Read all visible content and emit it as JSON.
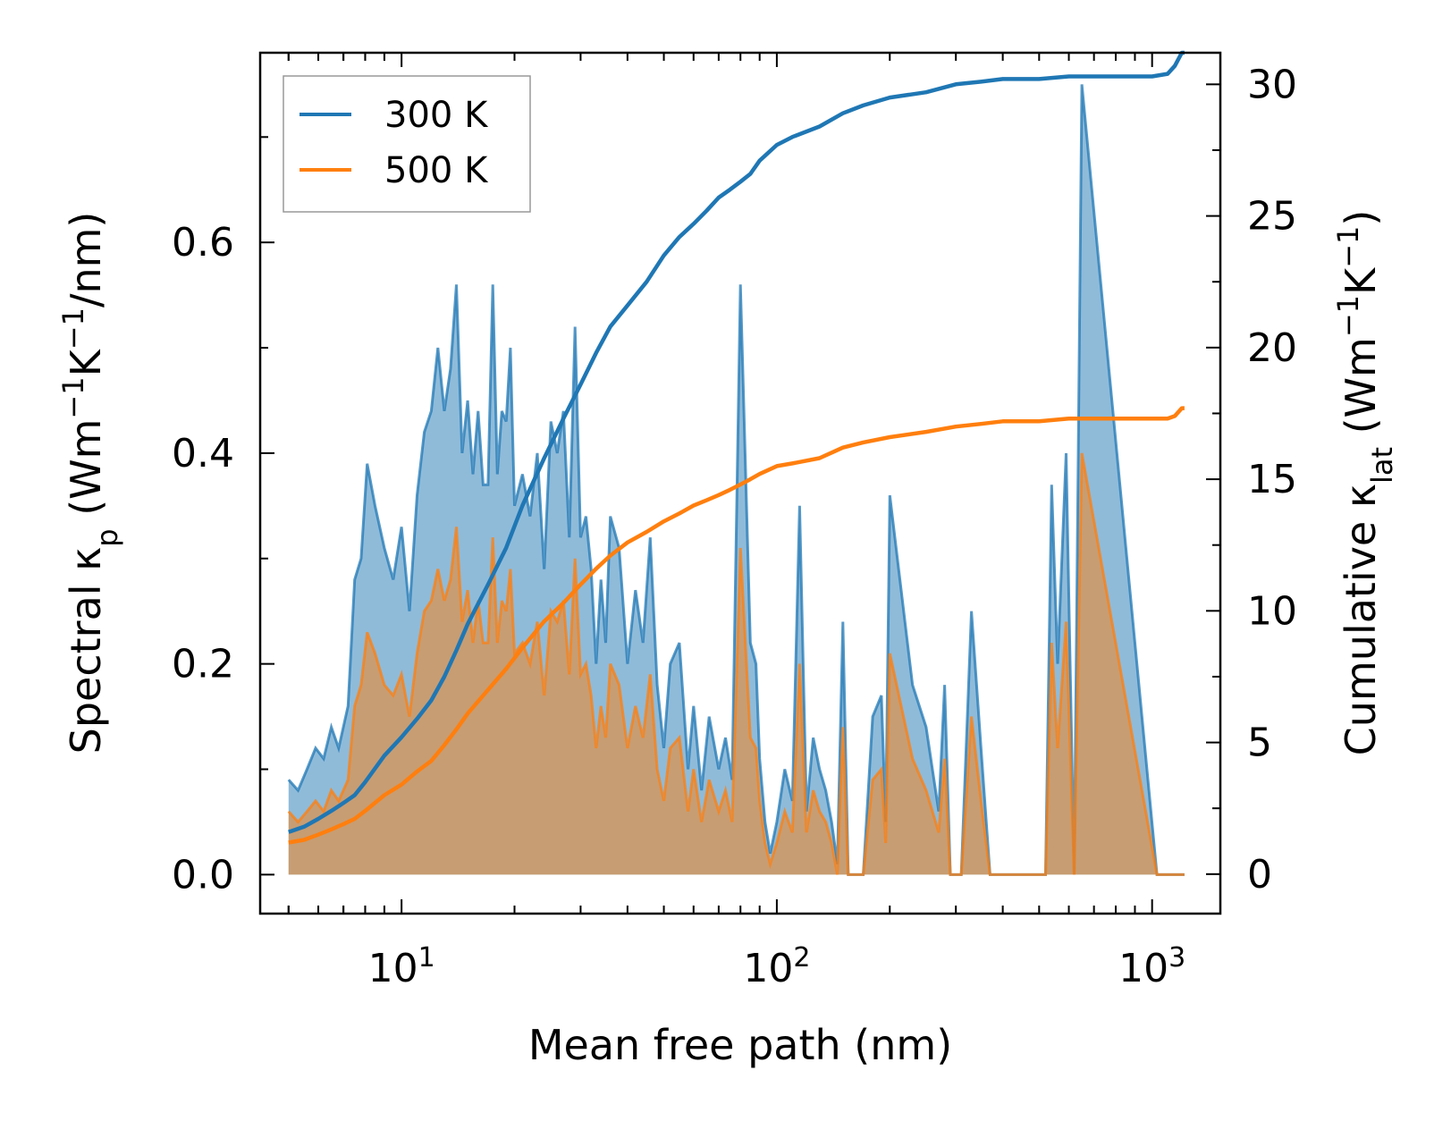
{
  "chart_data": {
    "type": "area+line",
    "xscale": "log",
    "xlim": [
      4.2,
      1520
    ],
    "ylim_left": [
      -0.037,
      0.78
    ],
    "ylim_right": [
      -1.5,
      31.2
    ],
    "xlabel": "Mean free path (nm)",
    "ylabel_left": "Spectral κp (Wm−1K−1/nm)",
    "ylabel_right": "Cumulative κlat (Wm−1K−1)",
    "x_ticks": [
      {
        "value": 10,
        "base": "10",
        "exp": "1"
      },
      {
        "value": 100,
        "base": "10",
        "exp": "2"
      },
      {
        "value": 1000,
        "base": "10",
        "exp": "3"
      }
    ],
    "yticks_left": [
      {
        "value": 0.0,
        "label": "0.0"
      },
      {
        "value": 0.2,
        "label": "0.2"
      },
      {
        "value": 0.4,
        "label": "0.4"
      },
      {
        "value": 0.6,
        "label": "0.6"
      }
    ],
    "yticks_right": [
      {
        "value": 0,
        "label": "0"
      },
      {
        "value": 5,
        "label": "5"
      },
      {
        "value": 10,
        "label": "10"
      },
      {
        "value": 15,
        "label": "15"
      },
      {
        "value": 20,
        "label": "20"
      },
      {
        "value": 25,
        "label": "25"
      },
      {
        "value": 30,
        "label": "30"
      }
    ],
    "legend": {
      "placement": "top-left",
      "entries": [
        {
          "label": "300 K",
          "color": "#1f77b4"
        },
        {
          "label": "500 K",
          "color": "#ff7f0e"
        }
      ]
    },
    "spectral_300K": {
      "x": [
        5,
        5.3,
        5.6,
        5.9,
        6.2,
        6.5,
        6.8,
        7.2,
        7.5,
        7.8,
        8.1,
        8.5,
        9.0,
        9.5,
        10,
        10.5,
        11.0,
        11.5,
        12.0,
        12.5,
        13.0,
        13.5,
        14.0,
        14.5,
        15.0,
        15.5,
        16.0,
        16.5,
        17.0,
        17.5,
        18.0,
        18.5,
        19.0,
        19.5,
        20.0,
        21,
        22,
        23,
        24,
        25,
        26,
        27,
        28,
        29,
        30,
        31,
        32,
        33,
        34,
        35,
        36,
        38,
        40,
        42,
        44,
        46,
        48,
        50,
        52,
        55,
        58,
        60,
        63,
        66,
        70,
        73,
        76,
        80,
        85,
        88,
        90,
        93,
        96,
        100,
        105,
        110,
        115,
        120,
        125,
        130,
        135,
        140,
        145,
        150,
        155,
        160,
        170,
        180,
        190,
        195,
        200,
        230,
        250,
        270,
        280,
        290,
        300,
        310,
        330,
        350,
        370,
        380,
        390,
        500,
        520,
        540,
        560,
        590,
        620,
        650,
        1030,
        1060,
        1080,
        1100,
        1120,
        1150,
        1180,
        1200,
        1220
      ],
      "y": [
        0.09,
        0.08,
        0.1,
        0.12,
        0.11,
        0.14,
        0.12,
        0.16,
        0.28,
        0.3,
        0.39,
        0.35,
        0.31,
        0.28,
        0.33,
        0.25,
        0.36,
        0.42,
        0.44,
        0.5,
        0.44,
        0.48,
        0.56,
        0.4,
        0.45,
        0.38,
        0.44,
        0.37,
        0.37,
        0.56,
        0.38,
        0.44,
        0.43,
        0.5,
        0.35,
        0.38,
        0.34,
        0.4,
        0.29,
        0.43,
        0.4,
        0.44,
        0.32,
        0.52,
        0.32,
        0.34,
        0.29,
        0.2,
        0.28,
        0.22,
        0.34,
        0.31,
        0.2,
        0.27,
        0.22,
        0.32,
        0.18,
        0.12,
        0.2,
        0.22,
        0.1,
        0.16,
        0.08,
        0.15,
        0.1,
        0.13,
        0.09,
        0.56,
        0.22,
        0.2,
        0.11,
        0.05,
        0.02,
        0.05,
        0.1,
        0.07,
        0.35,
        0.06,
        0.13,
        0.1,
        0.08,
        0.05,
        0.01,
        0.24,
        0.0,
        0.0,
        0.0,
        0.15,
        0.17,
        0.05,
        0.36,
        0.18,
        0.14,
        0.06,
        0.18,
        0.0,
        0.0,
        0.0,
        0.25,
        0.12,
        0.0,
        0.0,
        0.0,
        0.0,
        0.0,
        0.37,
        0.2,
        0.4,
        0.0,
        0.75,
        0.0,
        0.0,
        0.0,
        0.0,
        0.0,
        0.0,
        0.0,
        0.0,
        0.0
      ],
      "color": "#1f77b4",
      "fill_opacity": 0.5
    },
    "spectral_500K": {
      "x": [
        5,
        5.3,
        5.6,
        5.9,
        6.2,
        6.5,
        6.8,
        7.2,
        7.5,
        7.8,
        8.1,
        8.5,
        9.0,
        9.5,
        10,
        10.5,
        11.0,
        11.5,
        12.0,
        12.5,
        13.0,
        13.5,
        14.0,
        14.5,
        15.0,
        15.5,
        16.0,
        16.5,
        17.0,
        17.5,
        18.0,
        18.5,
        19.0,
        19.5,
        20.0,
        21,
        22,
        23,
        24,
        25,
        26,
        27,
        28,
        29,
        30,
        31,
        32,
        33,
        34,
        35,
        36,
        38,
        40,
        42,
        44,
        46,
        48,
        50,
        52,
        55,
        58,
        60,
        63,
        66,
        70,
        73,
        76,
        80,
        85,
        88,
        90,
        93,
        96,
        100,
        105,
        110,
        115,
        120,
        125,
        130,
        135,
        140,
        145,
        150,
        155,
        160,
        170,
        180,
        190,
        195,
        200,
        230,
        250,
        270,
        280,
        290,
        300,
        310,
        330,
        350,
        370,
        380,
        390,
        500,
        520,
        540,
        560,
        590,
        620,
        650,
        1030,
        1060,
        1080,
        1100,
        1120,
        1150,
        1180,
        1200,
        1220
      ],
      "y": [
        0.06,
        0.05,
        0.06,
        0.07,
        0.06,
        0.08,
        0.07,
        0.09,
        0.16,
        0.18,
        0.23,
        0.21,
        0.18,
        0.17,
        0.19,
        0.15,
        0.21,
        0.25,
        0.26,
        0.29,
        0.26,
        0.28,
        0.33,
        0.24,
        0.27,
        0.22,
        0.26,
        0.22,
        0.22,
        0.32,
        0.22,
        0.26,
        0.25,
        0.29,
        0.21,
        0.22,
        0.2,
        0.24,
        0.17,
        0.25,
        0.24,
        0.26,
        0.19,
        0.3,
        0.19,
        0.2,
        0.17,
        0.12,
        0.16,
        0.13,
        0.2,
        0.18,
        0.12,
        0.16,
        0.13,
        0.19,
        0.1,
        0.07,
        0.12,
        0.13,
        0.06,
        0.1,
        0.05,
        0.09,
        0.06,
        0.08,
        0.05,
        0.31,
        0.13,
        0.12,
        0.07,
        0.03,
        0.01,
        0.03,
        0.06,
        0.04,
        0.2,
        0.04,
        0.08,
        0.06,
        0.05,
        0.03,
        0.0,
        0.14,
        0.0,
        0.0,
        0.0,
        0.09,
        0.1,
        0.03,
        0.21,
        0.11,
        0.08,
        0.04,
        0.11,
        0.0,
        0.0,
        0.0,
        0.15,
        0.07,
        0.0,
        0.0,
        0.0,
        0.0,
        0.0,
        0.22,
        0.12,
        0.24,
        0.0,
        0.4,
        0.0,
        0.0,
        0.0,
        0.0,
        0.0,
        0.0,
        0.0,
        0.0,
        0.0
      ],
      "color": "#ff7f0e",
      "fill_opacity": 0.5
    },
    "cumulative_300K": {
      "x": [
        5,
        5.5,
        6,
        6.5,
        7,
        7.5,
        8,
        9,
        10,
        11,
        12,
        13,
        14,
        15,
        17,
        19,
        21,
        24,
        27,
        30,
        33,
        36,
        40,
        45,
        50,
        55,
        60,
        65,
        70,
        75,
        80,
        85,
        90,
        100,
        110,
        130,
        150,
        170,
        200,
        250,
        300,
        350,
        400,
        500,
        600,
        700,
        800,
        900,
        1000,
        1100,
        1150,
        1200,
        1220
      ],
      "y": [
        1.6,
        1.8,
        2.1,
        2.4,
        2.7,
        3.0,
        3.5,
        4.5,
        5.2,
        5.9,
        6.6,
        7.5,
        8.5,
        9.5,
        11.0,
        12.4,
        14.0,
        15.8,
        17.3,
        18.6,
        19.8,
        20.8,
        21.6,
        22.5,
        23.5,
        24.2,
        24.7,
        25.2,
        25.7,
        26.0,
        26.3,
        26.6,
        27.1,
        27.7,
        28.0,
        28.4,
        28.9,
        29.2,
        29.5,
        29.7,
        30.0,
        30.1,
        30.2,
        30.2,
        30.3,
        30.3,
        30.3,
        30.3,
        30.3,
        30.4,
        30.7,
        31.2,
        31.2
      ],
      "color": "#1f77b4"
    },
    "cumulative_500K": {
      "x": [
        5,
        5.5,
        6,
        6.5,
        7,
        7.5,
        8,
        9,
        10,
        11,
        12,
        13,
        14,
        15,
        17,
        19,
        21,
        24,
        27,
        30,
        33,
        36,
        40,
        45,
        50,
        55,
        60,
        65,
        70,
        75,
        80,
        85,
        90,
        100,
        110,
        130,
        150,
        170,
        200,
        250,
        300,
        350,
        400,
        500,
        600,
        700,
        800,
        900,
        1000,
        1100,
        1150,
        1200,
        1220
      ],
      "y": [
        1.2,
        1.3,
        1.5,
        1.7,
        1.9,
        2.1,
        2.4,
        3.0,
        3.4,
        3.9,
        4.3,
        4.9,
        5.5,
        6.1,
        7.0,
        7.8,
        8.6,
        9.6,
        10.3,
        11.0,
        11.6,
        12.1,
        12.6,
        13.0,
        13.4,
        13.7,
        14.0,
        14.2,
        14.4,
        14.6,
        14.8,
        15.0,
        15.2,
        15.5,
        15.6,
        15.8,
        16.2,
        16.4,
        16.6,
        16.8,
        17.0,
        17.1,
        17.2,
        17.2,
        17.3,
        17.3,
        17.3,
        17.3,
        17.3,
        17.3,
        17.4,
        17.7,
        17.7
      ],
      "color": "#ff7f0e"
    }
  }
}
